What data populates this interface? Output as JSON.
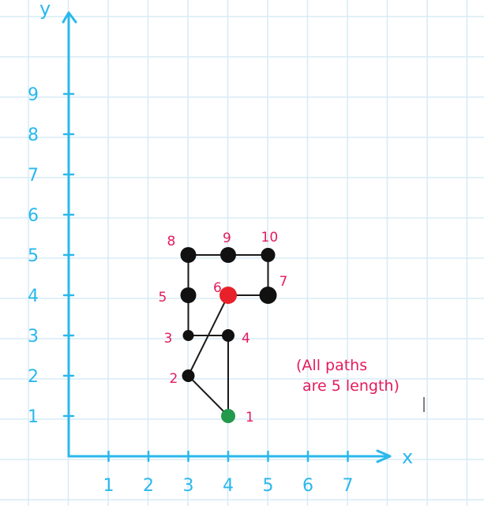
{
  "colors": {
    "grid": "#d8ecf6",
    "axis": "#2ab8ec",
    "edge": "#1a1a1a",
    "node": "#111111",
    "start_node": "#22994b",
    "end_node": "#e8202a",
    "label": "#e31b5c"
  },
  "axes": {
    "x_name": "x",
    "y_name": "y",
    "x_ticks": [
      {
        "value": 1,
        "label": "1"
      },
      {
        "value": 2,
        "label": "2"
      },
      {
        "value": 3,
        "label": "3"
      },
      {
        "value": 4,
        "label": "4"
      },
      {
        "value": 5,
        "label": "5"
      },
      {
        "value": 6,
        "label": "6"
      },
      {
        "value": 7,
        "label": "7"
      }
    ],
    "y_ticks": [
      {
        "value": 1,
        "label": "1"
      },
      {
        "value": 2,
        "label": "2"
      },
      {
        "value": 3,
        "label": "3"
      },
      {
        "value": 4,
        "label": "4"
      },
      {
        "value": 5,
        "label": "5"
      },
      {
        "value": 6,
        "label": "6"
      },
      {
        "value": 7,
        "label": "7"
      },
      {
        "value": 8,
        "label": "8"
      },
      {
        "value": 9,
        "label": "9"
      }
    ]
  },
  "nodes": [
    {
      "id": "1",
      "label": "1",
      "x": 4,
      "y": 1,
      "kind": "start"
    },
    {
      "id": "2",
      "label": "2",
      "x": 3,
      "y": 2,
      "kind": "normal"
    },
    {
      "id": "3",
      "label": "3",
      "x": 3,
      "y": 3,
      "kind": "normal"
    },
    {
      "id": "4",
      "label": "4",
      "x": 4,
      "y": 3,
      "kind": "normal"
    },
    {
      "id": "5",
      "label": "5",
      "x": 3,
      "y": 4,
      "kind": "normal"
    },
    {
      "id": "6",
      "label": "6",
      "x": 4,
      "y": 4,
      "kind": "end"
    },
    {
      "id": "7",
      "label": "7",
      "x": 5,
      "y": 4,
      "kind": "normal"
    },
    {
      "id": "8",
      "label": "8",
      "x": 3,
      "y": 5,
      "kind": "normal"
    },
    {
      "id": "9",
      "label": "9",
      "x": 4,
      "y": 5,
      "kind": "normal"
    },
    {
      "id": "10",
      "label": "10",
      "x": 5,
      "y": 5,
      "kind": "normal"
    }
  ],
  "edges": [
    [
      "1",
      "2"
    ],
    [
      "2",
      "6"
    ],
    [
      "1",
      "4"
    ],
    [
      "3",
      "4"
    ],
    [
      "3",
      "5"
    ],
    [
      "5",
      "8"
    ],
    [
      "8",
      "9"
    ],
    [
      "9",
      "10"
    ],
    [
      "10",
      "7"
    ],
    [
      "7",
      "6"
    ]
  ],
  "annotation": {
    "line1": "(All paths",
    "line2": "are 5 length)"
  }
}
